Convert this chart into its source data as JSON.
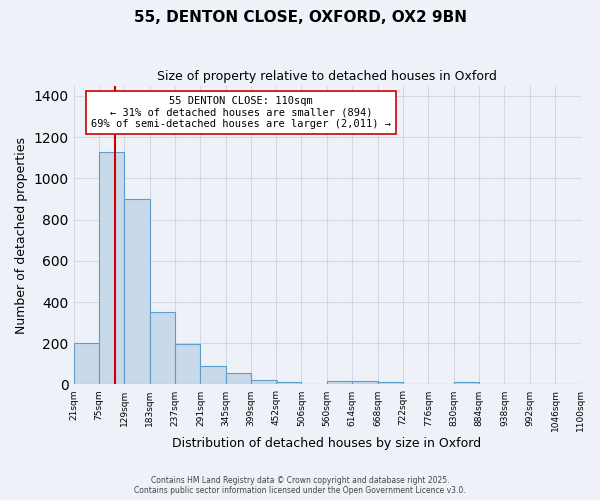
{
  "title": "55, DENTON CLOSE, OXFORD, OX2 9BN",
  "subtitle": "Size of property relative to detached houses in Oxford",
  "xlabel": "Distribution of detached houses by size in Oxford",
  "ylabel": "Number of detached properties",
  "bar_left_edges": [
    21,
    75,
    129,
    183,
    237,
    291,
    345,
    399,
    452,
    506,
    560,
    614,
    668,
    722,
    776,
    830,
    884,
    938,
    992,
    1046
  ],
  "bar_heights": [
    200,
    1130,
    900,
    350,
    195,
    90,
    55,
    20,
    10,
    0,
    15,
    15,
    10,
    0,
    0,
    10,
    0,
    0,
    0,
    0
  ],
  "bin_width": 54,
  "bar_color": "#c9d9ea",
  "bar_edge_color": "#5a9ec9",
  "tick_labels": [
    "21sqm",
    "75sqm",
    "129sqm",
    "183sqm",
    "237sqm",
    "291sqm",
    "345sqm",
    "399sqm",
    "452sqm",
    "506sqm",
    "560sqm",
    "614sqm",
    "668sqm",
    "722sqm",
    "776sqm",
    "830sqm",
    "884sqm",
    "938sqm",
    "992sqm",
    "1046sqm",
    "1100sqm"
  ],
  "property_line_x": 110,
  "property_line_color": "#cc0000",
  "ylim": [
    0,
    1450
  ],
  "yticks": [
    0,
    200,
    400,
    600,
    800,
    1000,
    1200,
    1400
  ],
  "annotation_title": "55 DENTON CLOSE: 110sqm",
  "annotation_line1": "← 31% of detached houses are smaller (894)",
  "annotation_line2": "69% of semi-detached houses are larger (2,011) →",
  "grid_color": "#d0d8e8",
  "bg_color": "#eef2f8",
  "footer1": "Contains HM Land Registry data © Crown copyright and database right 2025.",
  "footer2": "Contains public sector information licensed under the Open Government Licence v3.0."
}
